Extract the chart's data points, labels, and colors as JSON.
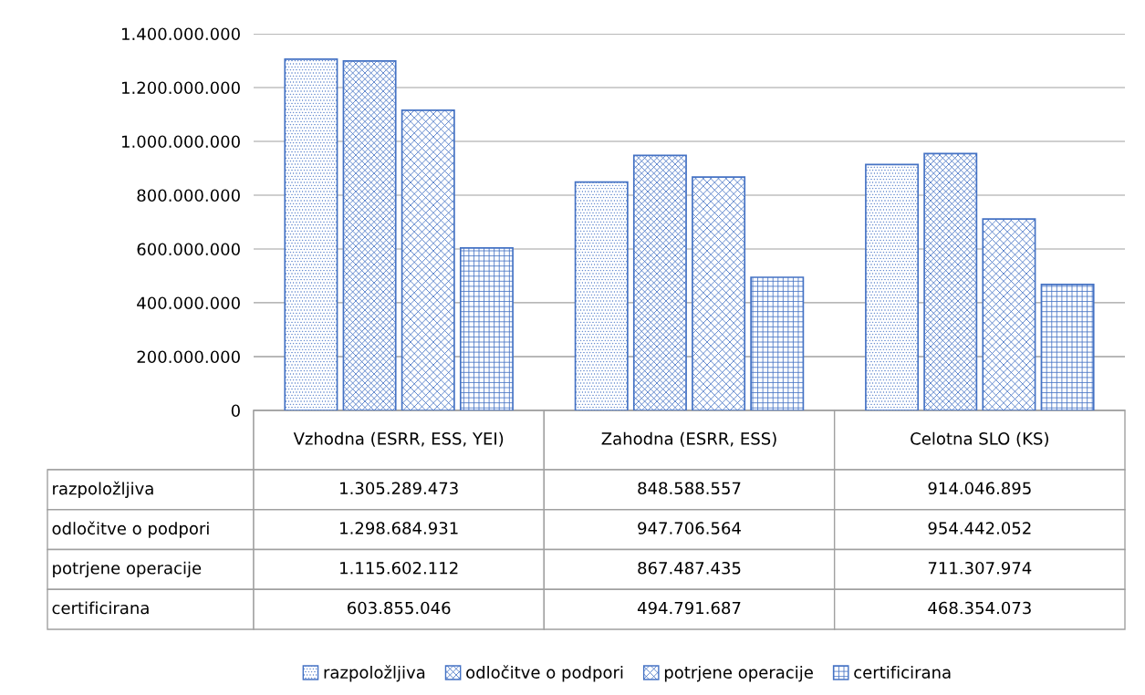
{
  "chart_data": {
    "type": "bar",
    "categories": [
      "Vzhodna (ESRR, ESS, YEI)",
      "Zahodna (ESRR, ESS)",
      "Celotna SLO (KS)"
    ],
    "series": [
      {
        "name": "razpoložljiva",
        "color": "#4472c4",
        "values": [
          1305289473,
          848588557,
          914046895
        ],
        "value_labels": [
          "1.305.289.473",
          "848.588.557",
          "914.046.895"
        ]
      },
      {
        "name": "odločitve o podpori",
        "color": "#4472c4",
        "values": [
          1298684931,
          947706564,
          954442052
        ],
        "value_labels": [
          "1.298.684.931",
          "947.706.564",
          "954.442.052"
        ]
      },
      {
        "name": "potrjene operacije",
        "color": "#4472c4",
        "values": [
          1115602112,
          867487435,
          711307974
        ],
        "value_labels": [
          "1.115.602.112",
          "867.487.435",
          "711.307.974"
        ]
      },
      {
        "name": "certificirana",
        "color": "#4472c4",
        "values": [
          603855046,
          494791687,
          468354073
        ],
        "value_labels": [
          "603.855.046",
          "494.791.687",
          "468.354.073"
        ]
      }
    ],
    "ylim": [
      0,
      1400000000
    ],
    "yticks": [
      {
        "value": 0,
        "label": "0"
      },
      {
        "value": 200000000,
        "label": "200.000.000"
      },
      {
        "value": 400000000,
        "label": "400.000.000"
      },
      {
        "value": 600000000,
        "label": "600.000.000"
      },
      {
        "value": 800000000,
        "label": "800.000.000"
      },
      {
        "value": 1000000000,
        "label": "1.000.000.000"
      },
      {
        "value": 1200000000,
        "label": "1.200.000.000"
      },
      {
        "value": 1400000000,
        "label": "1.400.000.000"
      }
    ],
    "grid": "y",
    "legend": "bottom"
  }
}
